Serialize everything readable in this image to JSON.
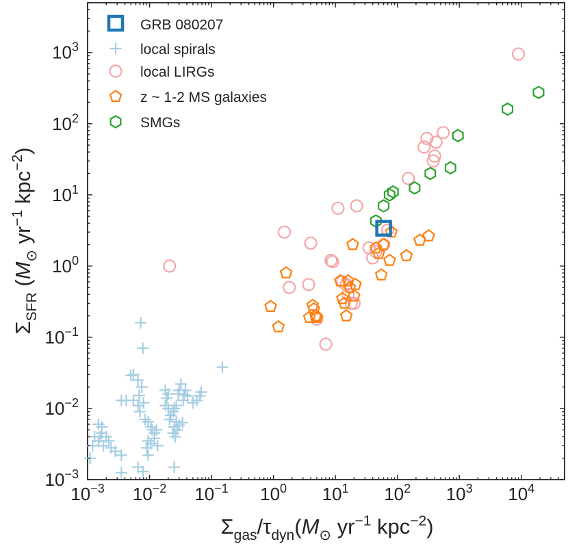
{
  "chart_data": {
    "type": "scatter",
    "x_scale": "log",
    "y_scale": "log",
    "xlim": [
      0.001,
      50000
    ],
    "ylim": [
      0.001,
      5000
    ],
    "xlabel": {
      "sigma": "Σ",
      "sub1": "gas",
      "slash": "/",
      "tau": "τ",
      "sub2": "dyn",
      "units_open": "(",
      "msun": "M",
      "sun_symbol": "⊙",
      "yr": " yr",
      "yr_exp": "−1",
      "kpc": " kpc",
      "kpc_exp": "−2",
      "units_close": ")"
    },
    "ylabel": {
      "sigma": "Σ",
      "sub": "SFR",
      "units_open": " (",
      "msun": "M",
      "sun_symbol": "⊙",
      "yr": " yr",
      "yr_exp": "−1",
      "kpc": " kpc",
      "kpc_exp": "−2",
      "units_close": ")"
    },
    "x_ticks": [
      {
        "value": 0.001,
        "base": "10",
        "exp": "−3"
      },
      {
        "value": 0.01,
        "base": "10",
        "exp": "−2"
      },
      {
        "value": 0.1,
        "base": "10",
        "exp": "−1"
      },
      {
        "value": 1,
        "base": "10",
        "exp": "0"
      },
      {
        "value": 10,
        "base": "10",
        "exp": "1"
      },
      {
        "value": 100,
        "base": "10",
        "exp": "2"
      },
      {
        "value": 1000,
        "base": "10",
        "exp": "3"
      },
      {
        "value": 10000,
        "base": "10",
        "exp": "4"
      }
    ],
    "y_ticks": [
      {
        "value": 0.001,
        "base": "10",
        "exp": "−3"
      },
      {
        "value": 0.01,
        "base": "10",
        "exp": "−2"
      },
      {
        "value": 0.1,
        "base": "10",
        "exp": "−1"
      },
      {
        "value": 1,
        "base": "10",
        "exp": "0"
      },
      {
        "value": 10,
        "base": "10",
        "exp": "1"
      },
      {
        "value": 100,
        "base": "10",
        "exp": "2"
      },
      {
        "value": 1000,
        "base": "10",
        "exp": "3"
      }
    ],
    "legend_position": "upper-left",
    "series": [
      {
        "name": "GRB 080207",
        "marker": "square",
        "color": "#1f77b4",
        "points": [
          [
            60,
            3.4
          ]
        ]
      },
      {
        "name": "local spirals",
        "marker": "plus",
        "color": "#a6cee3",
        "points": [
          [
            0.0016,
            0.004
          ],
          [
            0.0017,
            0.0045
          ],
          [
            0.0015,
            0.0035
          ],
          [
            0.002,
            0.004
          ],
          [
            0.0018,
            0.003
          ],
          [
            0.0012,
            0.003
          ],
          [
            0.0013,
            0.004
          ],
          [
            0.0011,
            0.002
          ],
          [
            0.0022,
            0.0035
          ],
          [
            0.0024,
            0.0028
          ],
          [
            0.0028,
            0.0025
          ],
          [
            0.0035,
            0.0022
          ],
          [
            0.0017,
            0.0055
          ],
          [
            0.0015,
            0.006
          ],
          [
            0.0055,
            0.03
          ],
          [
            0.005,
            0.029
          ],
          [
            0.0068,
            0.0152
          ],
          [
            0.0072,
            0.16
          ],
          [
            0.0078,
            0.07
          ],
          [
            0.0065,
            0.025
          ],
          [
            0.0075,
            0.02
          ],
          [
            0.0042,
            0.013
          ],
          [
            0.0035,
            0.013
          ],
          [
            0.0055,
            0.013
          ],
          [
            0.008,
            0.012
          ],
          [
            0.007,
            0.009
          ],
          [
            0.0065,
            0.011
          ],
          [
            0.0085,
            0.007
          ],
          [
            0.0095,
            0.0065
          ],
          [
            0.011,
            0.005
          ],
          [
            0.012,
            0.0045
          ],
          [
            0.0105,
            0.0055
          ],
          [
            0.013,
            0.005
          ],
          [
            0.012,
            0.0038
          ],
          [
            0.0095,
            0.0035
          ],
          [
            0.0105,
            0.0032
          ],
          [
            0.0135,
            0.003
          ],
          [
            0.009,
            0.0028
          ],
          [
            0.0095,
            0.0022
          ],
          [
            0.0065,
            0.0015
          ],
          [
            0.0078,
            0.0013
          ],
          [
            0.018,
            0.018
          ],
          [
            0.019,
            0.014
          ],
          [
            0.02,
            0.016
          ],
          [
            0.018,
            0.011
          ],
          [
            0.02,
            0.01
          ],
          [
            0.024,
            0.009
          ],
          [
            0.025,
            0.01
          ],
          [
            0.022,
            0.008
          ],
          [
            0.021,
            0.007
          ],
          [
            0.027,
            0.0065
          ],
          [
            0.025,
            0.0055
          ],
          [
            0.028,
            0.005
          ],
          [
            0.024,
            0.0045
          ],
          [
            0.026,
            0.004
          ],
          [
            0.03,
            0.018
          ],
          [
            0.032,
            0.022
          ],
          [
            0.038,
            0.018
          ],
          [
            0.036,
            0.0155
          ],
          [
            0.035,
            0.013
          ],
          [
            0.029,
            0.016
          ],
          [
            0.041,
            0.015
          ],
          [
            0.05,
            0.012
          ],
          [
            0.058,
            0.013
          ],
          [
            0.065,
            0.015
          ],
          [
            0.068,
            0.017
          ],
          [
            0.027,
            0.011
          ],
          [
            0.034,
            0.0063
          ],
          [
            0.03,
            0.0058
          ],
          [
            0.15,
            0.038
          ],
          [
            0.025,
            0.0015
          ],
          [
            0.0035,
            0.00125
          ]
        ]
      },
      {
        "name": "local LIRGs",
        "marker": "circle",
        "color": "#f4a6a6",
        "points": [
          [
            0.021,
            1.0
          ],
          [
            1.5,
            3.0
          ],
          [
            1.8,
            0.5
          ],
          [
            3.7,
            0.55
          ],
          [
            4.0,
            2.1
          ],
          [
            5.0,
            0.18
          ],
          [
            7.0,
            0.08
          ],
          [
            8.5,
            1.2
          ],
          [
            9.0,
            1.15
          ],
          [
            11.0,
            6.5
          ],
          [
            13.0,
            0.6
          ],
          [
            15.0,
            0.55
          ],
          [
            16.0,
            0.4
          ],
          [
            18.0,
            0.3
          ],
          [
            20.0,
            0.3
          ],
          [
            22.0,
            7.0
          ],
          [
            35.0,
            1.8
          ],
          [
            40.0,
            1.3
          ],
          [
            45.0,
            1.6
          ],
          [
            60.0,
            2.0
          ],
          [
            70.0,
            3.2
          ],
          [
            150.0,
            17.0
          ],
          [
            270.0,
            47.0
          ],
          [
            300.0,
            62.0
          ],
          [
            380.0,
            30.0
          ],
          [
            400.0,
            35.0
          ],
          [
            420.0,
            55.0
          ],
          [
            550.0,
            75.0
          ],
          [
            9000.0,
            950.0
          ]
        ]
      },
      {
        "name": "z ~ 1-2 MS galaxies",
        "marker": "pentagon",
        "color": "#ff7f0e",
        "points": [
          [
            0.9,
            0.27
          ],
          [
            1.2,
            0.14
          ],
          [
            1.6,
            0.8
          ],
          [
            3.8,
            0.19
          ],
          [
            4.3,
            0.28
          ],
          [
            4.5,
            0.25
          ],
          [
            4.8,
            0.2
          ],
          [
            5.0,
            0.19
          ],
          [
            12.0,
            0.62
          ],
          [
            13.0,
            0.35
          ],
          [
            14.0,
            0.3
          ],
          [
            15.0,
            0.2
          ],
          [
            16.0,
            0.62
          ],
          [
            17.0,
            0.5
          ],
          [
            19.0,
            2.0
          ],
          [
            20.0,
            0.38
          ],
          [
            21.0,
            0.55
          ],
          [
            45.0,
            1.8
          ],
          [
            50.0,
            1.5
          ],
          [
            55.0,
            0.75
          ],
          [
            60.0,
            2.0
          ],
          [
            75.0,
            1.2
          ],
          [
            80.0,
            3.0
          ],
          [
            140.0,
            1.4
          ],
          [
            230.0,
            2.3
          ],
          [
            320.0,
            2.65
          ]
        ]
      },
      {
        "name": "SMGs",
        "marker": "hexagon",
        "color": "#2ca02c",
        "points": [
          [
            45.0,
            4.3
          ],
          [
            60.0,
            7.0
          ],
          [
            75.0,
            10.0
          ],
          [
            85.0,
            11.0
          ],
          [
            190.0,
            12.5
          ],
          [
            340.0,
            20.0
          ],
          [
            720.0,
            24.0
          ],
          [
            950.0,
            68.0
          ],
          [
            6000.0,
            160.0
          ],
          [
            19000.0,
            275.0
          ]
        ]
      }
    ]
  }
}
